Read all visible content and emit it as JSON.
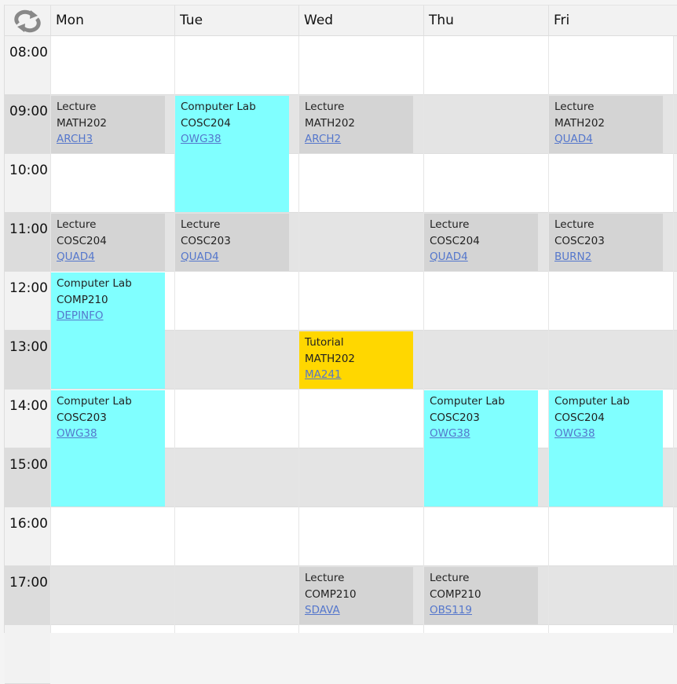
{
  "header": {
    "refresh_icon": "refresh-icon",
    "days": [
      "Mon",
      "Tue",
      "Wed",
      "Thu",
      "Fri"
    ]
  },
  "times": [
    "08:00",
    "09:00",
    "10:00",
    "11:00",
    "12:00",
    "13:00",
    "14:00",
    "15:00",
    "16:00",
    "17:00"
  ],
  "colors": {
    "lecture": "#d4d4d4",
    "lab": "#80ffff",
    "tutorial": "#ffd700",
    "link": "#5577cc"
  },
  "events": [
    {
      "day": 0,
      "start": "09:00",
      "end": "10:00",
      "type": "Lecture",
      "course": "MATH202",
      "room": "ARCH3",
      "kind": "lecture"
    },
    {
      "day": 1,
      "start": "09:00",
      "end": "11:00",
      "type": "Computer Lab",
      "course": "COSC204",
      "room": "OWG38",
      "kind": "lab"
    },
    {
      "day": 2,
      "start": "09:00",
      "end": "10:00",
      "type": "Lecture",
      "course": "MATH202",
      "room": "ARCH2",
      "kind": "lecture"
    },
    {
      "day": 4,
      "start": "09:00",
      "end": "10:00",
      "type": "Lecture",
      "course": "MATH202",
      "room": "QUAD4",
      "kind": "lecture"
    },
    {
      "day": 0,
      "start": "11:00",
      "end": "12:00",
      "type": "Lecture",
      "course": "COSC204",
      "room": "QUAD4",
      "kind": "lecture"
    },
    {
      "day": 1,
      "start": "11:00",
      "end": "12:00",
      "type": "Lecture",
      "course": "COSC203",
      "room": "QUAD4",
      "kind": "lecture"
    },
    {
      "day": 3,
      "start": "11:00",
      "end": "12:00",
      "type": "Lecture",
      "course": "COSC204",
      "room": "QUAD4",
      "kind": "lecture"
    },
    {
      "day": 4,
      "start": "11:00",
      "end": "12:00",
      "type": "Lecture",
      "course": "COSC203",
      "room": "BURN2",
      "kind": "lecture"
    },
    {
      "day": 0,
      "start": "12:00",
      "end": "14:00",
      "type": "Computer Lab",
      "course": "COMP210",
      "room": "DEPINFO",
      "kind": "lab"
    },
    {
      "day": 2,
      "start": "13:00",
      "end": "14:00",
      "type": "Tutorial",
      "course": "MATH202",
      "room": "MA241",
      "kind": "tutorial"
    },
    {
      "day": 0,
      "start": "14:00",
      "end": "16:00",
      "type": "Computer Lab",
      "course": "COSC203",
      "room": "OWG38",
      "kind": "lab"
    },
    {
      "day": 3,
      "start": "14:00",
      "end": "16:00",
      "type": "Computer Lab",
      "course": "COSC203",
      "room": "OWG38",
      "kind": "lab"
    },
    {
      "day": 4,
      "start": "14:00",
      "end": "16:00",
      "type": "Computer Lab",
      "course": "COSC204",
      "room": "OWG38",
      "kind": "lab"
    },
    {
      "day": 2,
      "start": "17:00",
      "end": "18:00",
      "type": "Lecture",
      "course": "COMP210",
      "room": "SDAVA",
      "kind": "lecture"
    },
    {
      "day": 3,
      "start": "17:00",
      "end": "18:00",
      "type": "Lecture",
      "course": "COMP210",
      "room": "OBS119",
      "kind": "lecture"
    }
  ]
}
